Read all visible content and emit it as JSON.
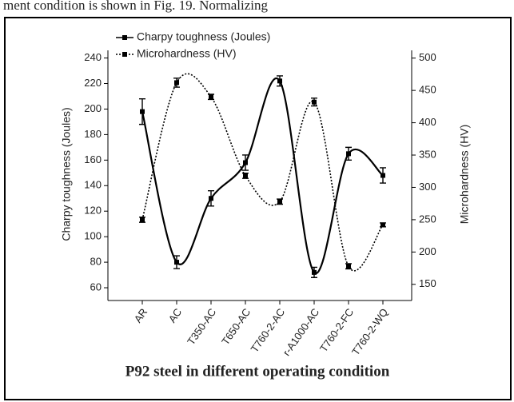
{
  "page_text": "ment condition is shown in Fig. 19. Normalizing",
  "chart_data": {
    "type": "line",
    "caption": "P92 steel in different operating condition",
    "ylabel": "Charpy toughness (Joules)",
    "y2label": "Microhardness (HV)",
    "categories": [
      "AR",
      "AC",
      "T350-AC",
      "T650-AC",
      "T760-2-AC",
      "r-A1000-AC",
      "T760-2-FC",
      "T760-2-WQ"
    ],
    "series": [
      {
        "name": "Charpy toughness (Joules)",
        "color": "#000000",
        "style": "solid",
        "axis": "y",
        "values": [
          198,
          80,
          130,
          158,
          222,
          72,
          165,
          148
        ],
        "errors": [
          10,
          5,
          6,
          6,
          4,
          4,
          5,
          6
        ]
      },
      {
        "name": "Microhardness (HV)",
        "color": "#000000",
        "style": "dotted",
        "axis": "y2",
        "values": [
          250,
          462,
          440,
          318,
          278,
          432,
          178,
          242
        ],
        "errors": [
          4,
          7,
          4,
          4,
          4,
          6,
          4,
          3
        ]
      }
    ],
    "ylim": [
      50,
      246
    ],
    "yticks": [
      60,
      80,
      100,
      120,
      140,
      160,
      180,
      200,
      220,
      240
    ],
    "y2lim": [
      125,
      512
    ],
    "y2ticks": [
      150,
      200,
      250,
      300,
      350,
      400,
      450,
      500
    ],
    "legend": "top-left"
  }
}
